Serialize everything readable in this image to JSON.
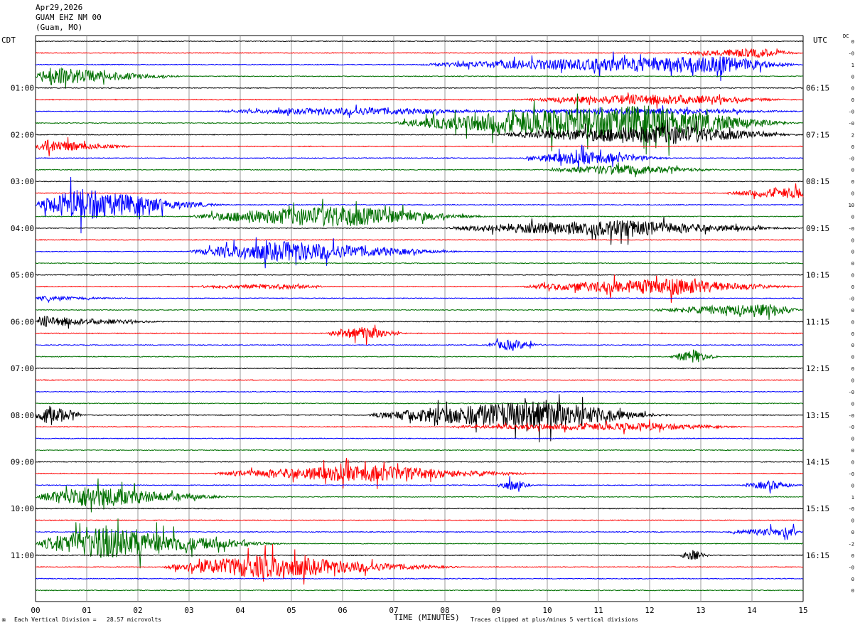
{
  "header": {
    "date": "Apr29,2026",
    "station": "GUAM EHZ NM 00",
    "location": "(Guam, MO)"
  },
  "left_zone": "CDT",
  "right_zone": "UTC",
  "dc_label": "DC",
  "footer": {
    "scale_note": "Each Vertical Division =   28.57 microvolts",
    "clip_note": "Traces clipped at plus/minus 5 vertical divisions",
    "mark": "※"
  },
  "colors": [
    "#000000",
    "#ff0000",
    "#0000ff",
    "#007000"
  ],
  "chart_data": {
    "type": "line",
    "title": "GUAM EHZ NM 00",
    "xlabel": "TIME (MINUTES)",
    "ylabel": "",
    "xlim": [
      0,
      15
    ],
    "x_ticks": [
      "00",
      "01",
      "02",
      "03",
      "04",
      "05",
      "06",
      "07",
      "08",
      "09",
      "10",
      "11",
      "12",
      "13",
      "14",
      "15"
    ],
    "trace_count": 48,
    "left_times": [
      {
        "trace": 4,
        "label": "01:00"
      },
      {
        "trace": 8,
        "label": "02:00"
      },
      {
        "trace": 12,
        "label": "03:00"
      },
      {
        "trace": 16,
        "label": "04:00"
      },
      {
        "trace": 20,
        "label": "05:00"
      },
      {
        "trace": 24,
        "label": "06:00"
      },
      {
        "trace": 28,
        "label": "07:00"
      },
      {
        "trace": 32,
        "label": "08:00"
      },
      {
        "trace": 36,
        "label": "09:00"
      },
      {
        "trace": 40,
        "label": "10:00"
      },
      {
        "trace": 44,
        "label": "11:00"
      }
    ],
    "right_times": [
      {
        "trace": 4,
        "label": "06:15"
      },
      {
        "trace": 8,
        "label": "07:15"
      },
      {
        "trace": 12,
        "label": "08:15"
      },
      {
        "trace": 16,
        "label": "09:15"
      },
      {
        "trace": 20,
        "label": "10:15"
      },
      {
        "trace": 24,
        "label": "11:15"
      },
      {
        "trace": 28,
        "label": "12:15"
      },
      {
        "trace": 32,
        "label": "13:15"
      },
      {
        "trace": 36,
        "label": "14:15"
      },
      {
        "trace": 40,
        "label": "15:15"
      },
      {
        "trace": 44,
        "label": "16:15"
      }
    ],
    "dc_offsets": [
      "0",
      "-0",
      "1",
      "0",
      "0",
      "0",
      "-0",
      "-0",
      "2",
      "0",
      "-0",
      "0",
      "0",
      "0",
      "10",
      "0",
      "-0",
      "0",
      "0",
      "0",
      "0",
      "0",
      "-0",
      "0",
      "0",
      "0",
      "0",
      "0",
      "0",
      "0",
      "-0",
      "0",
      "-0",
      "-0",
      "0",
      "0",
      "0",
      "-0",
      "0",
      "1",
      "-0",
      "0",
      "0",
      "-2",
      "0",
      "-0",
      "0",
      "0"
    ],
    "events": [
      {
        "trace": 1,
        "start": 12.6,
        "peak": 14.2,
        "end": 15,
        "amp": 1.2
      },
      {
        "trace": 2,
        "start": 7.5,
        "peak": 13.5,
        "end": 15,
        "amp": 2.3
      },
      {
        "trace": 3,
        "start": 0,
        "peak": 0.3,
        "end": 3.0,
        "amp": 2.5
      },
      {
        "trace": 5,
        "start": 9.5,
        "peak": 12.3,
        "end": 15,
        "amp": 1.4
      },
      {
        "trace": 6,
        "start": 3.5,
        "peak": 6.5,
        "end": 9.5,
        "amp": 1.0
      },
      {
        "trace": 6,
        "start": 9,
        "peak": 12.5,
        "end": 15,
        "amp": 0.8
      },
      {
        "trace": 7,
        "start": 7,
        "peak": 12.0,
        "end": 15,
        "amp": 5.0
      },
      {
        "trace": 8,
        "start": 9,
        "peak": 12.6,
        "end": 15,
        "amp": 2.6
      },
      {
        "trace": 9,
        "start": 0,
        "peak": 0.2,
        "end": 2.0,
        "amp": 1.8
      },
      {
        "trace": 10,
        "start": 9.5,
        "peak": 10.8,
        "end": 12.5,
        "amp": 1.8
      },
      {
        "trace": 11,
        "start": 10,
        "peak": 11.6,
        "end": 13.5,
        "amp": 1.4
      },
      {
        "trace": 13,
        "start": 13.5,
        "peak": 15,
        "end": 15,
        "amp": 1.5
      },
      {
        "trace": 14,
        "start": 0,
        "peak": 0.9,
        "end": 3.8,
        "amp": 4.5
      },
      {
        "trace": 15,
        "start": 3.0,
        "peak": 6.0,
        "end": 9.0,
        "amp": 3.0
      },
      {
        "trace": 16,
        "start": 8.0,
        "peak": 11.5,
        "end": 15,
        "amp": 2.2
      },
      {
        "trace": 18,
        "start": 3.0,
        "peak": 5.0,
        "end": 8.5,
        "amp": 2.8
      },
      {
        "trace": 21,
        "start": 3.0,
        "peak": 5.0,
        "end": 5.8,
        "amp": 0.6
      },
      {
        "trace": 21,
        "start": 9.5,
        "peak": 12.5,
        "end": 15,
        "amp": 2.2
      },
      {
        "trace": 22,
        "start": 0,
        "peak": 0.2,
        "end": 2.0,
        "amp": 0.5
      },
      {
        "trace": 23,
        "start": 12.0,
        "peak": 14.5,
        "end": 15,
        "amp": 1.6
      },
      {
        "trace": 24,
        "start": 0,
        "peak": 0.2,
        "end": 2.6,
        "amp": 1.4
      },
      {
        "trace": 25,
        "start": 5.7,
        "peak": 6.5,
        "end": 7.3,
        "amp": 1.8
      },
      {
        "trace": 26,
        "start": 8.8,
        "peak": 9.3,
        "end": 10.0,
        "amp": 1.5
      },
      {
        "trace": 27,
        "start": 12.4,
        "peak": 12.9,
        "end": 13.4,
        "amp": 1.7
      },
      {
        "trace": 32,
        "start": 0,
        "peak": 0.3,
        "end": 1.0,
        "amp": 3.0
      },
      {
        "trace": 32,
        "start": 6.5,
        "peak": 10.0,
        "end": 12.5,
        "amp": 4.0
      },
      {
        "trace": 33,
        "start": 8.0,
        "peak": 12.0,
        "end": 14.0,
        "amp": 1.0
      },
      {
        "trace": 37,
        "start": 3.5,
        "peak": 6.5,
        "end": 10.0,
        "amp": 2.2
      },
      {
        "trace": 38,
        "start": 9.0,
        "peak": 9.3,
        "end": 9.8,
        "amp": 1.4
      },
      {
        "trace": 38,
        "start": 13.8,
        "peak": 14.4,
        "end": 15,
        "amp": 1.2
      },
      {
        "trace": 39,
        "start": 0,
        "peak": 1.0,
        "end": 4.0,
        "amp": 3.0
      },
      {
        "trace": 42,
        "start": 13.5,
        "peak": 14.8,
        "end": 15,
        "amp": 1.3
      },
      {
        "trace": 43,
        "start": 0,
        "peak": 1.3,
        "end": 5.0,
        "amp": 4.5
      },
      {
        "trace": 44,
        "start": 12.6,
        "peak": 12.8,
        "end": 13.2,
        "amp": 1.6
      },
      {
        "trace": 45,
        "start": 2.5,
        "peak": 4.5,
        "end": 8.5,
        "amp": 3.2
      }
    ]
  }
}
